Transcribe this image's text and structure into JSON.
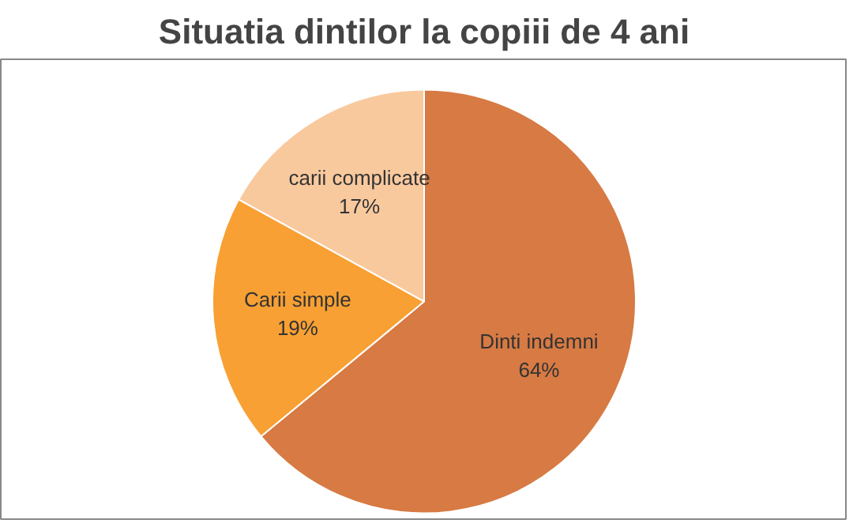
{
  "chart_data": {
    "type": "pie",
    "title": "Situatia dintilor la copiii de 4 ani",
    "categories": [
      "Dinti indemni",
      "Carii simple",
      "carii complicate"
    ],
    "values": [
      64,
      19,
      17
    ],
    "value_labels": [
      "64%",
      "19%",
      "17%"
    ],
    "colors": [
      "#d77a43",
      "#f8a033",
      "#f9c99e"
    ]
  }
}
